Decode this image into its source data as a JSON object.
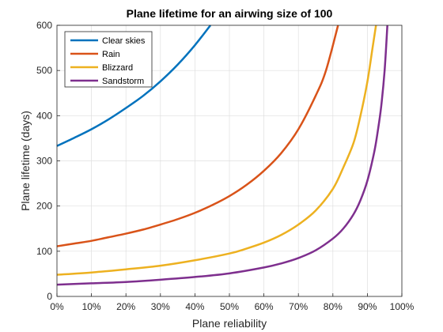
{
  "chart_data": {
    "type": "line",
    "title": "Plane lifetime for an airwing size of 100",
    "xlabel": "Plane reliability",
    "ylabel": "Plane lifetime (days)",
    "xlim": [
      0,
      100
    ],
    "ylim": [
      0,
      600
    ],
    "x_ticks": [
      "0%",
      "10%",
      "20%",
      "30%",
      "40%",
      "50%",
      "60%",
      "70%",
      "80%",
      "90%",
      "100%"
    ],
    "y_ticks": [
      "0",
      "100",
      "200",
      "300",
      "400",
      "500",
      "600"
    ],
    "grid": true,
    "legend_position": "top-left",
    "series": [
      {
        "name": "Clear skies",
        "color": "#0072BD",
        "points": [
          [
            0,
            333
          ],
          [
            5,
            351
          ],
          [
            10,
            370
          ],
          [
            15,
            392
          ],
          [
            20,
            417
          ],
          [
            25,
            444
          ],
          [
            30,
            476
          ],
          [
            35,
            513
          ],
          [
            40,
            556
          ],
          [
            44.5,
            600
          ]
        ]
      },
      {
        "name": "Rain",
        "color": "#D95319",
        "points": [
          [
            0,
            111
          ],
          [
            5,
            117
          ],
          [
            10,
            123
          ],
          [
            15,
            131
          ],
          [
            20,
            139
          ],
          [
            25,
            148
          ],
          [
            30,
            159
          ],
          [
            35,
            171
          ],
          [
            40,
            185
          ],
          [
            45,
            202
          ],
          [
            50,
            222
          ],
          [
            55,
            247
          ],
          [
            60,
            278
          ],
          [
            65,
            317
          ],
          [
            70,
            370
          ],
          [
            75,
            444
          ],
          [
            78,
            500
          ],
          [
            81.5,
            600
          ]
        ]
      },
      {
        "name": "Blizzard",
        "color": "#EDB120",
        "points": [
          [
            0,
            48
          ],
          [
            10,
            53
          ],
          [
            20,
            60
          ],
          [
            30,
            68
          ],
          [
            40,
            80
          ],
          [
            50,
            95
          ],
          [
            55,
            106
          ],
          [
            60,
            119
          ],
          [
            65,
            136
          ],
          [
            70,
            159
          ],
          [
            75,
            190
          ],
          [
            80,
            238
          ],
          [
            83,
            285
          ],
          [
            86,
            340
          ],
          [
            88,
            400
          ],
          [
            90,
            475
          ],
          [
            91.5,
            550
          ],
          [
            92.5,
            600
          ]
        ]
      },
      {
        "name": "Sandstorm",
        "color": "#7E2F8E",
        "points": [
          [
            0,
            26
          ],
          [
            10,
            29
          ],
          [
            20,
            32
          ],
          [
            30,
            37
          ],
          [
            40,
            43
          ],
          [
            50,
            51
          ],
          [
            60,
            64
          ],
          [
            65,
            73
          ],
          [
            70,
            85
          ],
          [
            75,
            102
          ],
          [
            80,
            128
          ],
          [
            83,
            150
          ],
          [
            86,
            182
          ],
          [
            88,
            213
          ],
          [
            90,
            256
          ],
          [
            92,
            320
          ],
          [
            93,
            365
          ],
          [
            94,
            420
          ],
          [
            95,
            500
          ],
          [
            95.8,
            600
          ]
        ]
      }
    ]
  }
}
